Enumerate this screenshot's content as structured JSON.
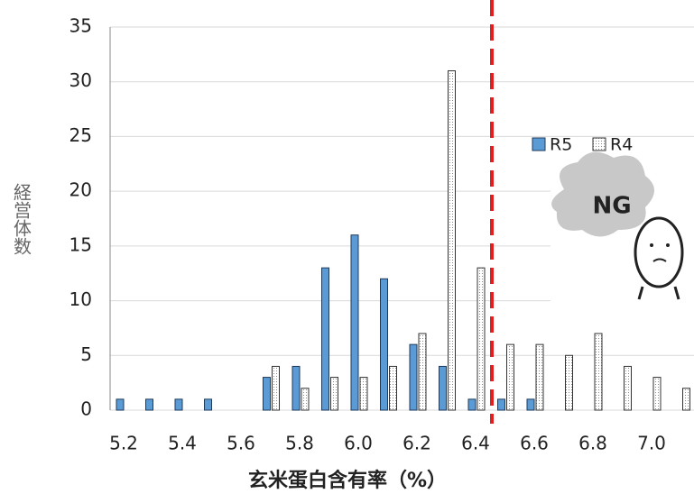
{
  "chart_data": {
    "type": "bar",
    "y_label": "経営体数",
    "x_label": "玄米蛋白含有率（%）",
    "annotation": "NG",
    "categories": [
      "5.2",
      null,
      "5.4",
      null,
      "5.6",
      null,
      "5.8",
      null,
      "6.0",
      null,
      "6.2",
      null,
      "6.4",
      null,
      "6.6",
      null,
      "6.8",
      null,
      "7.0",
      null
    ],
    "series": [
      {
        "name": "R5",
        "color": "#5b9bd5",
        "values": [
          1,
          1,
          1,
          1,
          0,
          3,
          4,
          13,
          16,
          12,
          6,
          4,
          1,
          1,
          1,
          0,
          0,
          0,
          0,
          0
        ]
      },
      {
        "name": "R4",
        "color": "#ffffff",
        "values": [
          0,
          0,
          0,
          0,
          0,
          4,
          2,
          3,
          3,
          4,
          7,
          31,
          13,
          6,
          6,
          5,
          7,
          4,
          3,
          2
        ]
      }
    ],
    "ylim": [
      0,
      35
    ],
    "yticks": [
      0,
      5,
      10,
      15,
      20,
      25,
      30,
      35
    ],
    "grid": true
  }
}
